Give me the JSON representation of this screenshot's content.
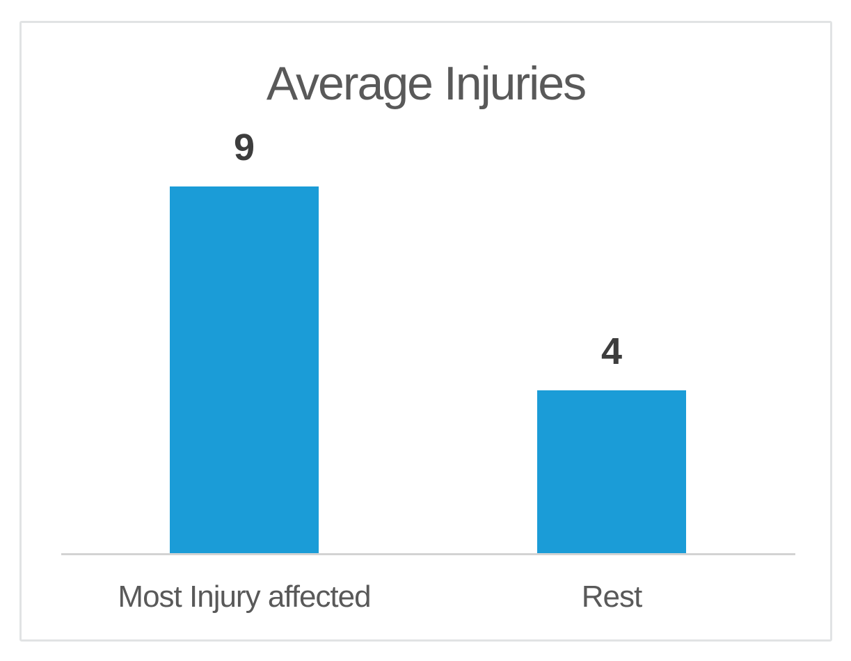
{
  "chart_data": {
    "type": "bar",
    "title": "Average Injuries",
    "categories": [
      "Most Injury affected",
      "Rest"
    ],
    "values": [
      9,
      4
    ],
    "data_labels_shown": true,
    "xlabel": "",
    "ylabel": "",
    "ylim": [
      0,
      10
    ],
    "grid": false,
    "legend": false,
    "colors": {
      "bar": "#1B9CD7",
      "title_text": "#595959",
      "data_label_text": "#3D3D3D",
      "category_text": "#595959",
      "axis_line": "#D3D3D3",
      "frame_border": "#E1E3E4",
      "background": "#FFFFFF"
    }
  }
}
